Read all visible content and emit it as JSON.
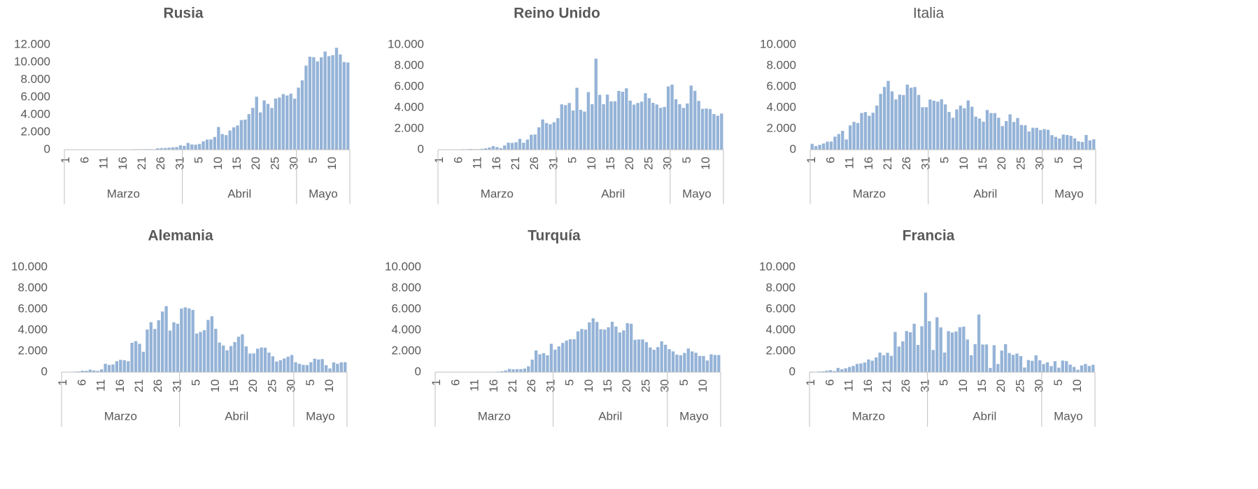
{
  "chart_data": [
    {
      "type": "bar",
      "title": "Rusia",
      "title_bold": true,
      "color": "#95b3d7",
      "categories": [
        "1",
        null,
        null,
        null,
        null,
        "6",
        null,
        null,
        null,
        null,
        "11",
        null,
        null,
        null,
        null,
        "16",
        null,
        null,
        null,
        null,
        "21",
        null,
        null,
        null,
        null,
        "26",
        null,
        null,
        null,
        null,
        "31",
        null,
        null,
        null,
        null,
        "5",
        null,
        null,
        null,
        null,
        "10",
        null,
        null,
        null,
        null,
        "15",
        null,
        null,
        null,
        null,
        "20",
        null,
        null,
        null,
        null,
        "25",
        null,
        null,
        null,
        null,
        "30",
        null,
        null,
        null,
        null,
        "5",
        null,
        null,
        null,
        null,
        "10",
        null,
        null,
        null,
        null
      ],
      "groups": [
        {
          "label": "Marzo",
          "span": 31
        },
        {
          "label": "Abril",
          "span": 30
        },
        {
          "label": "Mayo",
          "span": 14
        }
      ],
      "values": [
        0,
        0,
        1,
        0,
        1,
        2,
        3,
        3,
        0,
        0,
        3,
        8,
        11,
        6,
        5,
        28,
        27,
        33,
        52,
        54,
        53,
        62,
        71,
        57,
        163,
        182,
        196,
        228,
        270,
        302,
        500,
        440,
        771,
        601,
        582,
        658,
        954,
        1154,
        1175,
        1459,
        2600,
        1786,
        1667,
        2186,
        2558,
        2774,
        3388,
        3448,
        4070,
        4785,
        6060,
        4268,
        5642,
        5236,
        4774,
        5849,
        5966,
        6361,
        6198,
        6411,
        5841,
        7099,
        7933,
        9623,
        10633,
        10581,
        10102,
        10559,
        11231,
        10699,
        10817,
        11656,
        10899,
        10028,
        9974
      ],
      "ylim": [
        0,
        12000
      ],
      "yticks": [
        0,
        {
          "value": 2000,
          "label": "2.000"
        },
        {
          "value": 4000,
          "label": "4.000"
        },
        {
          "value": 6000,
          "label": "6.000"
        },
        {
          "value": 8000,
          "label": "8.000"
        },
        {
          "value": 10000,
          "label": "10.000"
        },
        {
          "value": 12000,
          "label": "12.000"
        }
      ],
      "grid": false
    },
    {
      "type": "bar",
      "title": "Reino Unido",
      "title_bold": true,
      "color": "#95b3d7",
      "categories": [
        "1",
        null,
        null,
        null,
        null,
        "6",
        null,
        null,
        null,
        null,
        "11",
        null,
        null,
        null,
        null,
        "16",
        null,
        null,
        null,
        null,
        "21",
        null,
        null,
        null,
        null,
        "26",
        null,
        null,
        null,
        null,
        "31",
        null,
        null,
        null,
        null,
        "5",
        null,
        null,
        null,
        null,
        "10",
        null,
        null,
        null,
        null,
        "15",
        null,
        null,
        null,
        null,
        "20",
        null,
        null,
        null,
        null,
        "25",
        null,
        null,
        null,
        null,
        "30",
        null,
        null,
        null,
        null,
        "5",
        null,
        null,
        null,
        null,
        "10",
        null,
        null,
        null,
        null
      ],
      "groups": [
        {
          "label": "Marzo",
          "span": 31
        },
        {
          "label": "Abril",
          "span": 30
        },
        {
          "label": "Mayo",
          "span": 14
        }
      ],
      "values": [
        0,
        4,
        13,
        11,
        34,
        30,
        48,
        43,
        67,
        48,
        52,
        83,
        134,
        208,
        342,
        251,
        152,
        407,
        676,
        643,
        714,
        1035,
        665,
        967,
        1427,
        1452,
        2129,
        2885,
        2546,
        2433,
        2619,
        3009,
        4324,
        4244,
        4450,
        3735,
        5903,
        3802,
        3634,
        5491,
        4344,
        8681,
        5233,
        4342,
        5252,
        4603,
        4617,
        5599,
        5525,
        5850,
        4676,
        4301,
        4451,
        4583,
        5386,
        4913,
        4463,
        4309,
        3996,
        4076,
        6032,
        6201,
        4806,
        4339,
        3985,
        4406,
        6111,
        5614,
        4649,
        3896,
        3923,
        3877,
        3403,
        3242,
        3446
      ],
      "ylim": [
        0,
        10000
      ],
      "yticks": [
        0,
        {
          "value": 2000,
          "label": "2.000"
        },
        {
          "value": 4000,
          "label": "4.000"
        },
        {
          "value": 6000,
          "label": "6.000"
        },
        {
          "value": 8000,
          "label": "8.000"
        },
        {
          "value": 10000,
          "label": "10.000"
        }
      ],
      "grid": false
    },
    {
      "type": "bar",
      "title": "Italia",
      "title_bold": false,
      "color": "#95b3d7",
      "categories": [
        "1",
        null,
        null,
        null,
        null,
        "6",
        null,
        null,
        null,
        null,
        "11",
        null,
        null,
        null,
        null,
        "16",
        null,
        null,
        null,
        null,
        "21",
        null,
        null,
        null,
        null,
        "26",
        null,
        null,
        null,
        null,
        "31",
        null,
        null,
        null,
        null,
        "5",
        null,
        null,
        null,
        null,
        "10",
        null,
        null,
        null,
        null,
        "15",
        null,
        null,
        null,
        null,
        "20",
        null,
        null,
        null,
        null,
        "25",
        null,
        null,
        null,
        null,
        "30",
        null,
        null,
        null,
        null,
        "5",
        null,
        null,
        null,
        null,
        "10",
        null,
        null,
        null,
        null
      ],
      "groups": [
        {
          "label": "Marzo",
          "span": 31
        },
        {
          "label": "Abril",
          "span": 30
        },
        {
          "label": "Mayo",
          "span": 14
        }
      ],
      "values": [
        561,
        347,
        466,
        587,
        769,
        778,
        1247,
        1492,
        1797,
        977,
        2313,
        2651,
        2547,
        3497,
        3590,
        3233,
        3526,
        4207,
        5322,
        5986,
        6557,
        5560,
        4789,
        5249,
        5210,
        6203,
        5909,
        5974,
        5217,
        4050,
        4053,
        4782,
        4668,
        4585,
        4805,
        4316,
        3599,
        3039,
        3836,
        4204,
        3951,
        4694,
        4092,
        3153,
        2972,
        2667,
        3786,
        3493,
        3491,
        3047,
        2256,
        2729,
        3370,
        2646,
        3021,
        2357,
        2324,
        1739,
        2091,
        2086,
        1872,
        1965,
        1900,
        1389,
        1221,
        1075,
        1444,
        1401,
        1327,
        1083,
        802,
        744,
        1402,
        888,
        992
      ],
      "ylim": [
        0,
        10000
      ],
      "yticks": [
        0,
        {
          "value": 2000,
          "label": "2.000"
        },
        {
          "value": 4000,
          "label": "4.000"
        },
        {
          "value": 6000,
          "label": "6.000"
        },
        {
          "value": 8000,
          "label": "8.000"
        },
        {
          "value": 10000,
          "label": "10.000"
        }
      ],
      "grid": false
    },
    {
      "type": "bar",
      "title": "Alemania",
      "title_bold": true,
      "color": "#95b3d7",
      "categories": [
        "1",
        null,
        null,
        null,
        null,
        "6",
        null,
        null,
        null,
        null,
        "11",
        null,
        null,
        null,
        null,
        "16",
        null,
        null,
        null,
        null,
        "21",
        null,
        null,
        null,
        null,
        "26",
        null,
        null,
        null,
        null,
        "31",
        null,
        null,
        null,
        null,
        "5",
        null,
        null,
        null,
        null,
        "10",
        null,
        null,
        null,
        null,
        "15",
        null,
        null,
        null,
        null,
        "20",
        null,
        null,
        null,
        null,
        "25",
        null,
        null,
        null,
        null,
        "30",
        null,
        null,
        null,
        null,
        "5",
        null,
        null,
        null,
        null,
        "10",
        null,
        null,
        null,
        null
      ],
      "groups": [
        {
          "label": "Marzo",
          "span": 31
        },
        {
          "label": "Abril",
          "span": 30
        },
        {
          "label": "Mayo",
          "span": 14
        }
      ],
      "values": [
        0,
        13,
        28,
        52,
        66,
        138,
        129,
        242,
        165,
        122,
        271,
        802,
        693,
        733,
        1043,
        1174,
        1144,
        1042,
        2801,
        2958,
        2705,
        1948,
        4062,
        4764,
        4118,
        4954,
        5780,
        6294,
        3965,
        4751,
        4615,
        6064,
        6174,
        6082,
        5936,
        3677,
        3834,
        4003,
        4974,
        5323,
        4133,
        2821,
        2537,
        2082,
        2486,
        2866,
        3380,
        3609,
        2458,
        1775,
        1785,
        2237,
        2352,
        2337,
        1868,
        1514,
        1018,
        1144,
        1304,
        1478,
        1639,
        945,
        793,
        697,
        685,
        947,
        1284,
        1209,
        1251,
        667,
        357,
        933,
        798,
        933,
        950
      ],
      "ylim": [
        0,
        10000
      ],
      "yticks": [
        0,
        {
          "value": 2000,
          "label": "2.000"
        },
        {
          "value": 4000,
          "label": "4.000"
        },
        {
          "value": 6000,
          "label": "6.000"
        },
        {
          "value": 8000,
          "label": "8.000"
        },
        {
          "value": 10000,
          "label": "10.000"
        }
      ],
      "grid": false
    },
    {
      "type": "bar",
      "title": "Turquía",
      "title_bold": true,
      "color": "#95b3d7",
      "categories": [
        "1",
        null,
        null,
        null,
        null,
        "6",
        null,
        null,
        null,
        null,
        "11",
        null,
        null,
        null,
        null,
        "16",
        null,
        null,
        null,
        null,
        "21",
        null,
        null,
        null,
        null,
        "26",
        null,
        null,
        null,
        null,
        "31",
        null,
        null,
        null,
        null,
        "5",
        null,
        null,
        null,
        null,
        "10",
        null,
        null,
        null,
        null,
        "15",
        null,
        null,
        null,
        null,
        "20",
        null,
        null,
        null,
        null,
        "25",
        null,
        null,
        null,
        null,
        "30",
        null,
        null,
        null,
        null,
        "5",
        null,
        null,
        null,
        null,
        "10",
        null,
        null,
        null,
        null
      ],
      "groups": [
        {
          "label": "Marzo",
          "span": 31
        },
        {
          "label": "Abril",
          "span": 30
        },
        {
          "label": "Mayo",
          "span": 14
        }
      ],
      "values": [
        0,
        0,
        0,
        0,
        0,
        0,
        0,
        0,
        0,
        0,
        1,
        0,
        4,
        1,
        12,
        29,
        51,
        93,
        168,
        311,
        277,
        289,
        293,
        343,
        561,
        1196,
        2069,
        1704,
        1815,
        1610,
        2704,
        2148,
        2456,
        2786,
        3013,
        3135,
        3148,
        3892,
        4117,
        4056,
        4747,
        5138,
        4789,
        4093,
        4062,
        4281,
        4801,
        4353,
        3783,
        3977,
        4674,
        4611,
        3083,
        3116,
        3122,
        2861,
        2357,
        2131,
        2392,
        2936,
        2615,
        2188,
        1983,
        1670,
        1614,
        1832,
        2253,
        1977,
        1848,
        1546,
        1542,
        1114,
        1704,
        1641,
        1635
      ],
      "ylim": [
        0,
        10000
      ],
      "yticks": [
        0,
        {
          "value": 2000,
          "label": "2.000"
        },
        {
          "value": 4000,
          "label": "4.000"
        },
        {
          "value": 6000,
          "label": "6.000"
        },
        {
          "value": 8000,
          "label": "8.000"
        },
        {
          "value": 10000,
          "label": "10.000"
        }
      ],
      "grid": false
    },
    {
      "type": "bar",
      "title": "Francia",
      "title_bold": true,
      "color": "#95b3d7",
      "categories": [
        "1",
        null,
        null,
        null,
        null,
        "6",
        null,
        null,
        null,
        null,
        "11",
        null,
        null,
        null,
        null,
        "16",
        null,
        null,
        null,
        null,
        "21",
        null,
        null,
        null,
        null,
        "26",
        null,
        null,
        null,
        null,
        "31",
        null,
        null,
        null,
        null,
        "5",
        null,
        null,
        null,
        null,
        "10",
        null,
        null,
        null,
        null,
        "15",
        null,
        null,
        null,
        null,
        "20",
        null,
        null,
        null,
        null,
        "25",
        null,
        null,
        null,
        null,
        "30",
        null,
        null,
        null,
        null,
        "5",
        null,
        null,
        null,
        null,
        "10",
        null,
        null,
        null,
        null
      ],
      "groups": [
        {
          "label": "Marzo",
          "span": 31
        },
        {
          "label": "Abril",
          "span": 30
        },
        {
          "label": "Mayo",
          "span": 14
        }
      ],
      "values": [
        43,
        30,
        61,
        73,
        138,
        190,
        103,
        410,
        286,
        372,
        497,
        595,
        785,
        838,
        924,
        1210,
        1097,
        1404,
        1861,
        1617,
        1847,
        1559,
        3838,
        2446,
        2931,
        3922,
        3809,
        4611,
        2599,
        4376,
        7578,
        4861,
        2116,
        5233,
        4267,
        1873,
        3912,
        3777,
        3881,
        4286,
        4342,
        3114,
        1613,
        2673,
        5497,
        2633,
        2641,
        405,
        2569,
        785,
        2051,
        2667,
        1827,
        1653,
        1773,
        1537,
        442,
        1153,
        1084,
        1607,
        1132,
        773,
        938,
        580,
        1050,
        432,
        1108,
        1054,
        720,
        507,
        230,
        643,
        787,
        590,
        702
      ],
      "ylim": [
        0,
        10000
      ],
      "yticks": [
        0,
        {
          "value": 2000,
          "label": "2.000"
        },
        {
          "value": 4000,
          "label": "4.000"
        },
        {
          "value": 6000,
          "label": "6.000"
        },
        {
          "value": 8000,
          "label": "8.000"
        },
        {
          "value": 10000,
          "label": "10.000"
        }
      ],
      "grid": false
    }
  ]
}
